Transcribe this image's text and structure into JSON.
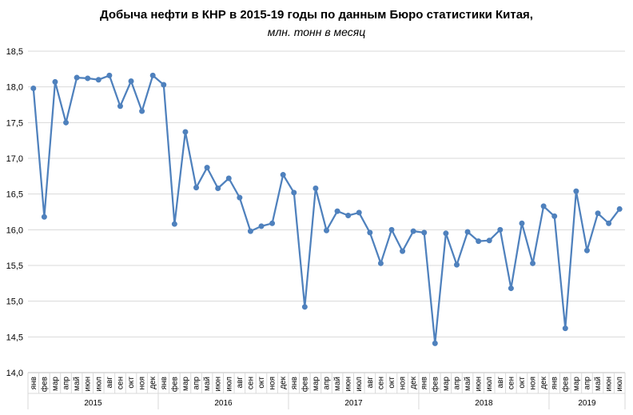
{
  "chart_data": {
    "type": "line",
    "title": "Добыча нефти в КНР в 2015-19 годы по данным Бюро статистики Китая,",
    "subtitle": "млн. тонн в месяц",
    "ylim": [
      14.0,
      18.5
    ],
    "yticks": [
      "14,0",
      "14,5",
      "15,0",
      "15,5",
      "16,0",
      "16,5",
      "17,0",
      "17,5",
      "18,0",
      "18,5"
    ],
    "grid": true,
    "legend": "none",
    "line_color": "#4F81BD",
    "years": [
      {
        "label": "2015",
        "months": 12
      },
      {
        "label": "2016",
        "months": 12
      },
      {
        "label": "2017",
        "months": 12
      },
      {
        "label": "2018",
        "months": 12
      },
      {
        "label": "2019",
        "months": 7
      }
    ],
    "month_labels": [
      "янв",
      "фев",
      "мар",
      "апр",
      "май",
      "июн",
      "июл",
      "авг",
      "сен",
      "окт",
      "ноя",
      "дек"
    ],
    "values": [
      17.98,
      16.18,
      18.07,
      17.5,
      18.13,
      18.12,
      18.1,
      18.16,
      17.73,
      18.08,
      17.66,
      18.16,
      18.03,
      16.08,
      17.37,
      16.59,
      16.87,
      16.58,
      16.72,
      16.45,
      15.98,
      16.05,
      16.09,
      16.77,
      16.52,
      14.92,
      16.58,
      15.99,
      16.26,
      16.2,
      16.24,
      15.96,
      15.53,
      16.0,
      15.7,
      15.98,
      15.96,
      14.41,
      15.95,
      15.51,
      15.97,
      15.84,
      15.85,
      16.0,
      15.18,
      16.09,
      15.53,
      16.33,
      16.19,
      14.62,
      16.54,
      15.71,
      16.23,
      16.09,
      16.29
    ]
  }
}
